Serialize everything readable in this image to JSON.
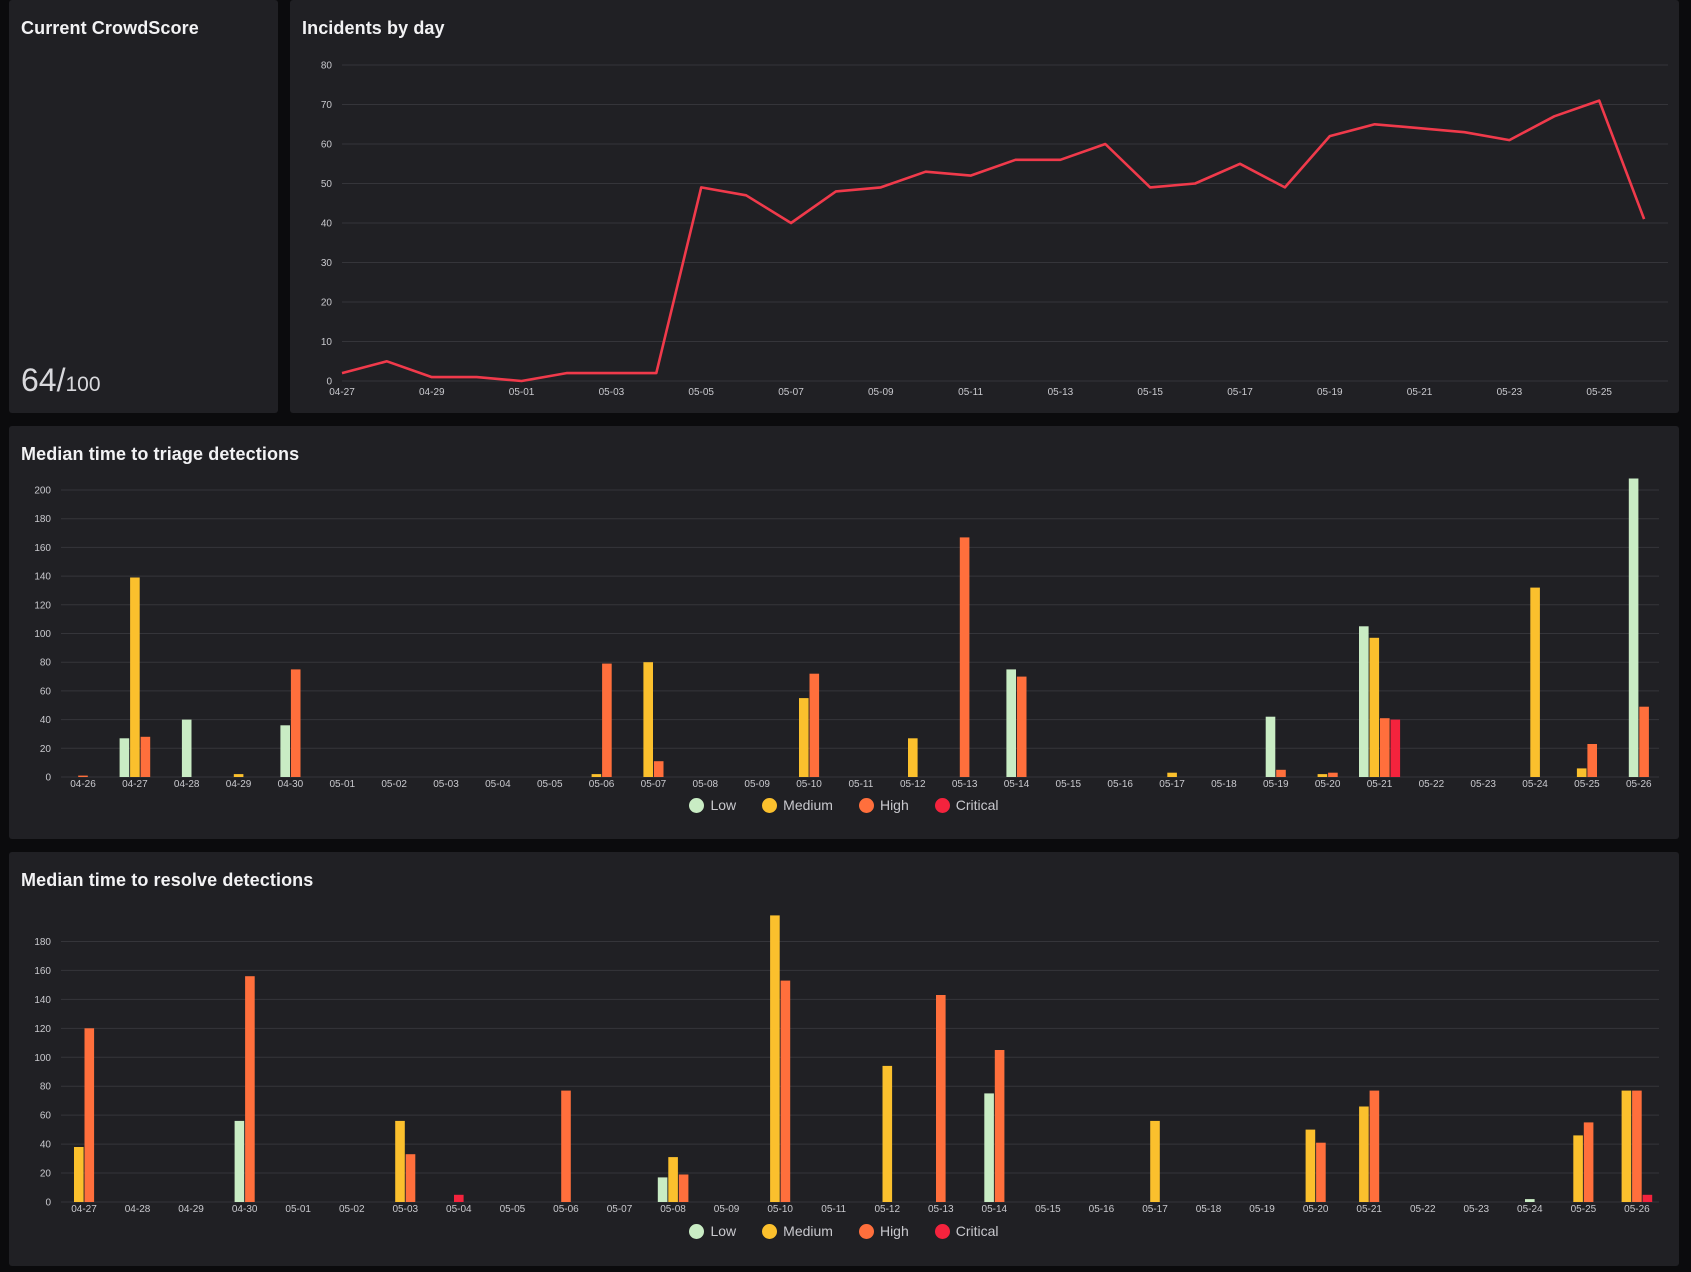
{
  "crowdscore": {
    "title": "Current CrowdScore",
    "score": "64",
    "separator": "/",
    "max": "100"
  },
  "colors": {
    "low": "#c9ecc4",
    "medium": "#fbc02d",
    "high": "#ff6f3c",
    "critical": "#f4233d",
    "line": "#f03a4b"
  },
  "legend": {
    "low": "Low",
    "medium": "Medium",
    "high": "High",
    "critical": "Critical"
  },
  "chart_data": [
    {
      "type": "line",
      "title": "Incidents by day",
      "ylim": [
        0,
        80
      ],
      "yticks": [
        0,
        10,
        20,
        30,
        40,
        50,
        60,
        70,
        80
      ],
      "x_tick_labels": [
        "04-27",
        "04-29",
        "05-01",
        "05-03",
        "05-05",
        "05-07",
        "05-09",
        "05-11",
        "05-13",
        "05-15",
        "05-17",
        "05-19",
        "05-21",
        "05-23",
        "05-25"
      ],
      "x": [
        "04-27",
        "04-28",
        "04-29",
        "04-30",
        "05-01",
        "05-02",
        "05-03",
        "05-04",
        "05-05",
        "05-06",
        "05-07",
        "05-08",
        "05-09",
        "05-10",
        "05-11",
        "05-12",
        "05-13",
        "05-14",
        "05-15",
        "05-16",
        "05-17",
        "05-18",
        "05-19",
        "05-20",
        "05-21",
        "05-22",
        "05-23",
        "05-24",
        "05-25",
        "05-26"
      ],
      "values": [
        2,
        5,
        1,
        1,
        0,
        2,
        2,
        2,
        49,
        47,
        40,
        48,
        49,
        53,
        52,
        56,
        56,
        60,
        49,
        50,
        55,
        49,
        62,
        65,
        64,
        63,
        61,
        67,
        71,
        41
      ],
      "grid": true
    },
    {
      "type": "bar",
      "title": "Median time to triage detections",
      "ylim": [
        0,
        200
      ],
      "yticks": [
        0,
        20,
        40,
        60,
        80,
        100,
        120,
        140,
        160,
        180,
        200
      ],
      "categories": [
        "04-26",
        "04-27",
        "04-28",
        "04-29",
        "04-30",
        "05-01",
        "05-02",
        "05-03",
        "05-04",
        "05-05",
        "05-06",
        "05-07",
        "05-08",
        "05-09",
        "05-10",
        "05-11",
        "05-12",
        "05-13",
        "05-14",
        "05-15",
        "05-16",
        "05-17",
        "05-18",
        "05-19",
        "05-20",
        "05-21",
        "05-22",
        "05-23",
        "05-24",
        "05-25",
        "05-26"
      ],
      "series": [
        {
          "name": "Low",
          "values": [
            0,
            27,
            40,
            0,
            36,
            0,
            0,
            0,
            0,
            0,
            0,
            0,
            0,
            0,
            0,
            0,
            0,
            0,
            75,
            0,
            0,
            0,
            0,
            42,
            0,
            105,
            0,
            0,
            0,
            0,
            208
          ]
        },
        {
          "name": "Medium",
          "values": [
            0,
            139,
            0,
            2,
            0,
            0,
            0,
            0,
            0,
            0,
            2,
            80,
            0,
            0,
            55,
            0,
            27,
            0,
            0,
            0,
            0,
            3,
            0,
            0,
            2,
            97,
            0,
            0,
            132,
            6,
            0
          ]
        },
        {
          "name": "High",
          "values": [
            1,
            28,
            0,
            0,
            75,
            0,
            0,
            0,
            0,
            0,
            79,
            11,
            0,
            0,
            72,
            0,
            0,
            167,
            70,
            0,
            0,
            0,
            0,
            5,
            3,
            41,
            0,
            0,
            0,
            23,
            49
          ]
        },
        {
          "name": "Critical",
          "values": [
            0,
            0,
            0,
            0,
            0,
            0,
            0,
            0,
            0,
            0,
            0,
            0,
            0,
            0,
            0,
            0,
            0,
            0,
            0,
            0,
            0,
            0,
            0,
            0,
            0,
            40,
            0,
            0,
            0,
            0,
            0
          ]
        }
      ],
      "legend_position": "bottom",
      "grid": true
    },
    {
      "type": "bar",
      "title": "Median time to resolve detections",
      "ylim": [
        0,
        190
      ],
      "yticks": [
        0,
        20,
        40,
        60,
        80,
        100,
        120,
        140,
        160,
        180
      ],
      "categories": [
        "04-27",
        "04-28",
        "04-29",
        "04-30",
        "05-01",
        "05-02",
        "05-03",
        "05-04",
        "05-05",
        "05-06",
        "05-07",
        "05-08",
        "05-09",
        "05-10",
        "05-11",
        "05-12",
        "05-13",
        "05-14",
        "05-15",
        "05-16",
        "05-17",
        "05-18",
        "05-19",
        "05-20",
        "05-21",
        "05-22",
        "05-23",
        "05-24",
        "05-25",
        "05-26"
      ],
      "series": [
        {
          "name": "Low",
          "values": [
            0,
            0,
            0,
            56,
            0,
            0,
            0,
            0,
            0,
            0,
            0,
            17,
            0,
            0,
            0,
            0,
            0,
            75,
            0,
            0,
            0,
            0,
            0,
            0,
            0,
            0,
            0,
            2,
            0,
            0
          ]
        },
        {
          "name": "Medium",
          "values": [
            38,
            0,
            0,
            0,
            0,
            0,
            56,
            0,
            0,
            0,
            0,
            31,
            0,
            198,
            0,
            94,
            0,
            0,
            0,
            0,
            56,
            0,
            0,
            50,
            66,
            0,
            0,
            0,
            46,
            77
          ]
        },
        {
          "name": "High",
          "values": [
            120,
            0,
            0,
            156,
            0,
            0,
            33,
            0,
            0,
            77,
            0,
            19,
            0,
            153,
            0,
            0,
            143,
            105,
            0,
            0,
            0,
            0,
            0,
            41,
            77,
            0,
            0,
            0,
            55,
            77
          ]
        },
        {
          "name": "Critical",
          "values": [
            0,
            0,
            0,
            0,
            0,
            0,
            0,
            5,
            0,
            0,
            0,
            0,
            0,
            0,
            0,
            0,
            0,
            0,
            0,
            0,
            0,
            0,
            0,
            0,
            0,
            0,
            0,
            0,
            0,
            5
          ]
        }
      ],
      "legend_position": "bottom",
      "grid": true
    }
  ]
}
